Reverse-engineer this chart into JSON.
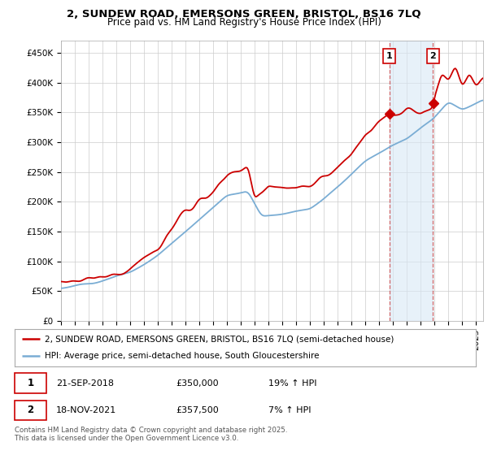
{
  "title": "2, SUNDEW ROAD, EMERSONS GREEN, BRISTOL, BS16 7LQ",
  "subtitle": "Price paid vs. HM Land Registry's House Price Index (HPI)",
  "ylabel_ticks": [
    "£0",
    "£50K",
    "£100K",
    "£150K",
    "£200K",
    "£250K",
    "£300K",
    "£350K",
    "£400K",
    "£450K"
  ],
  "ytick_values": [
    0,
    50000,
    100000,
    150000,
    200000,
    250000,
    300000,
    350000,
    400000,
    450000
  ],
  "ylim": [
    0,
    470000
  ],
  "xlim_start": 1995.0,
  "xlim_end": 2025.5,
  "purchase_1": {
    "date": "21-SEP-2018",
    "price": 350000,
    "label": "1",
    "year": 2018.72
  },
  "purchase_2": {
    "date": "18-NOV-2021",
    "price": 357500,
    "label": "2",
    "year": 2021.88
  },
  "legend_line1": "2, SUNDEW ROAD, EMERSONS GREEN, BRISTOL, BS16 7LQ (semi-detached house)",
  "legend_line2": "HPI: Average price, semi-detached house, South Gloucestershire",
  "footer": "Contains HM Land Registry data © Crown copyright and database right 2025.\nThis data is licensed under the Open Government Licence v3.0.",
  "line_color_red": "#cc0000",
  "line_color_blue": "#7aadd4",
  "box_fill_color": "#ddeeff",
  "background_color": "#ffffff",
  "grid_color": "#cccccc",
  "title_fontsize": 9.5,
  "subtitle_fontsize": 8.5,
  "tick_fontsize": 7.5,
  "legend_fontsize": 7.5,
  "annotation_fontsize": 8
}
